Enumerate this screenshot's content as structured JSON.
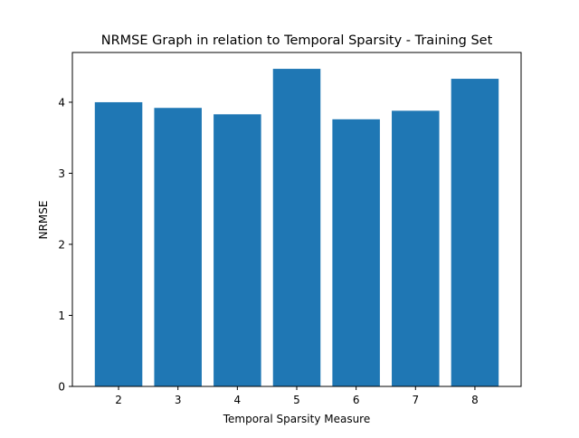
{
  "chart_data": {
    "type": "bar",
    "title": "NRMSE Graph in relation to Temporal Sparsity - Training Set",
    "xlabel": "Temporal Sparsity Measure",
    "ylabel": "NRMSE",
    "categories": [
      "2",
      "3",
      "4",
      "5",
      "6",
      "7",
      "8"
    ],
    "values": [
      4.0,
      3.92,
      3.83,
      4.47,
      3.76,
      3.88,
      4.33
    ],
    "ylim": [
      0,
      4.7
    ],
    "yticks": [
      "0",
      "1",
      "2",
      "3",
      "4"
    ],
    "grid": false,
    "legend": "none",
    "bar_color": "#1f77b4"
  }
}
